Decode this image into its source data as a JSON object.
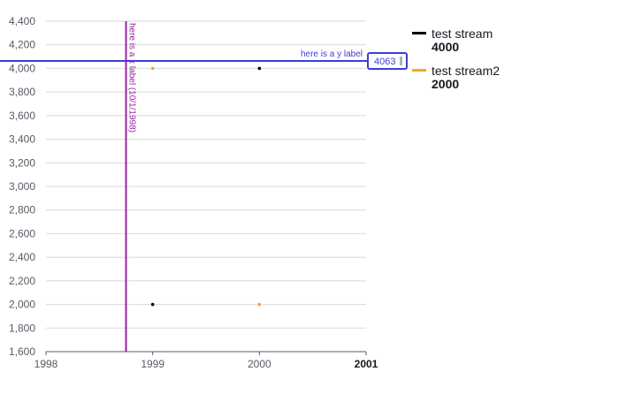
{
  "chart_data": {
    "type": "scatter",
    "title": "",
    "xlabel": "",
    "ylabel": "",
    "x_ticks": [
      "1998",
      "1999",
      "2000",
      "2001"
    ],
    "y_ticks": [
      "1,600",
      "1,800",
      "2,000",
      "2,200",
      "2,400",
      "2,600",
      "2,800",
      "3,000",
      "3,200",
      "3,400",
      "3,600",
      "3,800",
      "4,000",
      "4,200",
      "4,400"
    ],
    "xlim": [
      1998,
      2001
    ],
    "ylim": [
      1600,
      4400
    ],
    "grid": "horizontal",
    "legend_position": "right",
    "series": [
      {
        "name": "test stream",
        "color": "#000000",
        "points": [
          [
            1999,
            2000
          ],
          [
            2000,
            4000
          ]
        ],
        "legend_value": "4000"
      },
      {
        "name": "test stream2",
        "color": "#f5a623",
        "points": [
          [
            1999,
            4000
          ],
          [
            2000,
            2000
          ]
        ],
        "legend_value": "2000"
      }
    ],
    "annotations": {
      "vertical_line": {
        "x": 1998.75,
        "label": "here is a x label (10/1/1998)",
        "color": "#9b1fa6"
      },
      "horizontal_line": {
        "y": 4063,
        "label": "here is a y label",
        "value_label": "4063",
        "color": "#3b3fd8"
      }
    }
  }
}
